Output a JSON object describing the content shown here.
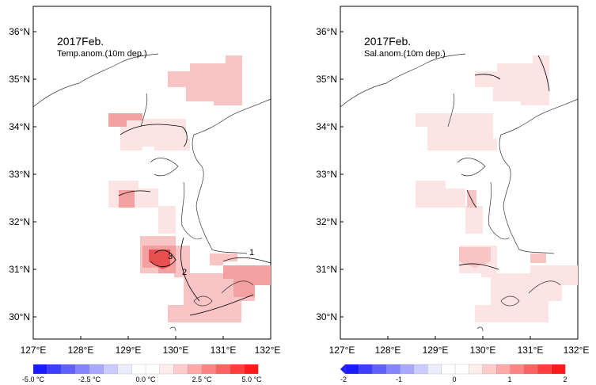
{
  "panels": [
    {
      "id": "temp",
      "title": "2017Feb.",
      "subtitle": "Temp.anom.(10m dep.)",
      "x_ticks": [
        "127°E",
        "128°E",
        "129°E",
        "130°E",
        "131°E",
        "132°E"
      ],
      "y_ticks": [
        "30°N",
        "31°N",
        "32°N",
        "33°N",
        "34°N",
        "35°N",
        "36°N"
      ],
      "contour_labels": [
        "1",
        "2",
        "3"
      ],
      "colorbar": {
        "labels": [
          "-5.0 °C",
          "-2.5 °C",
          "0.0 °C",
          "2.5 °C",
          "5.0 °C"
        ],
        "min": -5.0,
        "max": 5.0
      }
    },
    {
      "id": "sal",
      "title": "2017Feb.",
      "subtitle": "Sal.anom.(10m dep.)",
      "x_ticks": [
        "127°E",
        "128°E",
        "129°E",
        "130°E",
        "131°E",
        "132°E"
      ],
      "y_ticks": [
        "30°N",
        "31°N",
        "32°N",
        "33°N",
        "34°N",
        "35°N",
        "36°N"
      ],
      "contour_labels": [],
      "colorbar": {
        "labels": [
          "-2",
          "-1",
          "0",
          "1",
          "2"
        ],
        "min": -2,
        "max": 2
      }
    }
  ],
  "colors": {
    "pale_pink": "#fde4e4",
    "light_pink": "#f9c4c4",
    "mid_pink": "#f4a0a0",
    "strong_red": "#ee7a7a",
    "deep_red": "#e85050"
  }
}
